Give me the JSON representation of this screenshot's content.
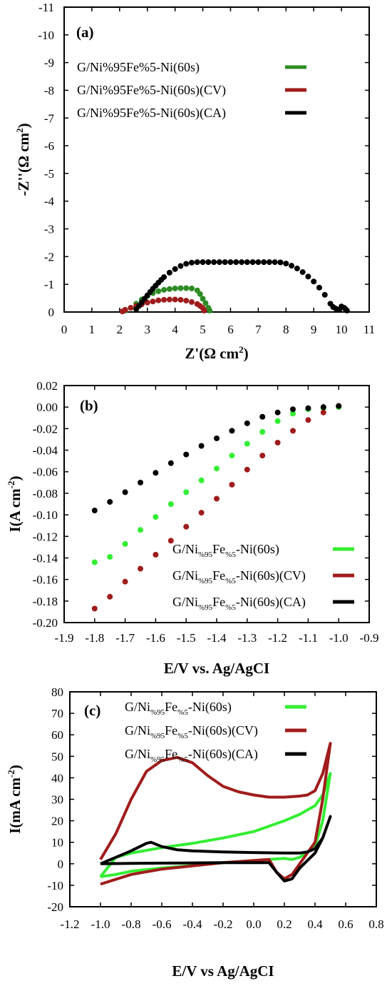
{
  "chart_data": [
    {
      "type": "scatter",
      "panel_label": "(a)",
      "xlabel": "Z'(Ω cm²)",
      "ylabel": "-Z''(Ω cm²)",
      "xlim": [
        0,
        11
      ],
      "ylim": [
        0,
        -11
      ],
      "xticks": [
        0,
        1,
        2,
        3,
        4,
        5,
        6,
        7,
        8,
        9,
        10,
        11
      ],
      "yticks": [
        0,
        -1,
        -2,
        -3,
        -4,
        -5,
        -6,
        -7,
        -8,
        -9,
        -10,
        -11
      ],
      "legend_position": "top-left",
      "series": [
        {
          "name": "G/Ni%95Fe%5-Ni(60s)",
          "legend_parts": [
            "G/Ni%95Fe%5-Ni(60s)"
          ],
          "color": "#2e8b24",
          "x": [
            2.2,
            2.4,
            2.6,
            2.8,
            3.0,
            3.2,
            3.4,
            3.6,
            3.8,
            4.0,
            4.2,
            4.4,
            4.6,
            4.8,
            4.9,
            5.0,
            5.1,
            5.2,
            5.25
          ],
          "y": [
            -0.05,
            -0.15,
            -0.3,
            -0.45,
            -0.58,
            -0.68,
            -0.75,
            -0.8,
            -0.83,
            -0.85,
            -0.86,
            -0.86,
            -0.85,
            -0.78,
            -0.65,
            -0.48,
            -0.32,
            -0.15,
            -0.05
          ]
        },
        {
          "name": "G/Ni%95Fe%5-Ni(60s)(CV)",
          "legend_parts": [
            "G/Ni%95Fe%5-Ni(60s)(CV)"
          ],
          "color": "#a01c1c",
          "x": [
            2.1,
            2.2,
            2.4,
            2.6,
            2.8,
            3.0,
            3.2,
            3.4,
            3.6,
            3.8,
            4.0,
            4.2,
            4.4,
            4.6,
            4.8,
            4.9,
            5.0,
            5.05
          ],
          "y": [
            -0.02,
            -0.08,
            -0.15,
            -0.22,
            -0.28,
            -0.34,
            -0.38,
            -0.42,
            -0.44,
            -0.45,
            -0.45,
            -0.44,
            -0.41,
            -0.36,
            -0.29,
            -0.22,
            -0.14,
            -0.05
          ]
        },
        {
          "name": "G/Ni%95Fe%5-Ni(60s)(CA)",
          "legend_parts": [
            "G/Ni%95Fe%5-Ni(60s)(CA)"
          ],
          "color": "#000000",
          "x": [
            2.6,
            2.7,
            2.8,
            2.9,
            3.0,
            3.1,
            3.2,
            3.3,
            3.4,
            3.5,
            3.6,
            3.8,
            4.0,
            4.2,
            4.4,
            4.6,
            4.8,
            5.0,
            5.2,
            5.4,
            5.6,
            5.8,
            6.0,
            6.2,
            6.4,
            6.6,
            6.8,
            7.0,
            7.2,
            7.4,
            7.6,
            7.8,
            8.0,
            8.2,
            8.4,
            8.6,
            8.8,
            9.0,
            9.2,
            9.4,
            9.6,
            9.7,
            9.8,
            9.9,
            10.0,
            10.1,
            10.15,
            10.2
          ],
          "y": [
            -0.1,
            -0.22,
            -0.35,
            -0.48,
            -0.6,
            -0.72,
            -0.84,
            -0.95,
            -1.06,
            -1.16,
            -1.26,
            -1.42,
            -1.55,
            -1.66,
            -1.74,
            -1.78,
            -1.8,
            -1.8,
            -1.8,
            -1.8,
            -1.8,
            -1.8,
            -1.8,
            -1.8,
            -1.8,
            -1.8,
            -1.8,
            -1.8,
            -1.8,
            -1.8,
            -1.8,
            -1.79,
            -1.75,
            -1.67,
            -1.57,
            -1.44,
            -1.28,
            -1.1,
            -0.88,
            -0.62,
            -0.3,
            -0.18,
            -0.12,
            -0.08,
            -0.2,
            -0.15,
            -0.1,
            -0.05
          ]
        }
      ]
    },
    {
      "type": "scatter",
      "panel_label": "(b)",
      "xlabel": "E/V vs. Ag/AgCI",
      "ylabel": "I(A cm⁻²)",
      "xlim": [
        -1.9,
        -0.9
      ],
      "ylim": [
        -0.2,
        0.02
      ],
      "xticks": [
        -1.9,
        -1.8,
        -1.7,
        -1.6,
        -1.5,
        -1.4,
        -1.3,
        -1.2,
        -1.1,
        -1.0,
        -0.9
      ],
      "xtick_labels": [
        "-1.9",
        "-1.8",
        "-1.7",
        "-1.6",
        "-1.5",
        "-1.4",
        "-1.3",
        "-1.2",
        "-1.1",
        "-1.0",
        "-0.9"
      ],
      "yticks": [
        0.02,
        0.0,
        -0.02,
        -0.04,
        -0.06,
        -0.08,
        -0.1,
        -0.12,
        -0.14,
        -0.16,
        -0.18,
        -0.2
      ],
      "ytick_labels": [
        "0.02",
        "0.00",
        "-0.02",
        "-0.04",
        "-0.06",
        "-0.08",
        "-0.10",
        "-0.12",
        "-0.14",
        "-0.16",
        "-0.18",
        "-0.20"
      ],
      "legend_position": "bottom-right",
      "series": [
        {
          "name": "G/Ni%95Fe%5-Ni(60s)",
          "legend_parts": [
            "G/Ni",
            "%95",
            "Fe",
            "%5",
            "-Ni(60s)"
          ],
          "color": "#33ee33",
          "x": [
            -1.8,
            -1.75,
            -1.7,
            -1.65,
            -1.6,
            -1.55,
            -1.5,
            -1.45,
            -1.4,
            -1.35,
            -1.3,
            -1.25,
            -1.2,
            -1.15,
            -1.1,
            -1.05,
            -1.0
          ],
          "y": [
            -0.144,
            -0.139,
            -0.127,
            -0.114,
            -0.102,
            -0.09,
            -0.079,
            -0.068,
            -0.057,
            -0.045,
            -0.034,
            -0.023,
            -0.013,
            -0.006,
            -0.002,
            -0.001,
            0.0
          ]
        },
        {
          "name": "G/Ni%95Fe%5-Ni(60s)(CV)",
          "legend_parts": [
            "G/Ni",
            "%95",
            "Fe",
            "%5",
            "-Ni(60s)(CV)"
          ],
          "color": "#a01c1c",
          "x": [
            -1.8,
            -1.75,
            -1.7,
            -1.65,
            -1.6,
            -1.55,
            -1.5,
            -1.45,
            -1.4,
            -1.35,
            -1.3,
            -1.25,
            -1.2,
            -1.15,
            -1.1,
            -1.05,
            -1.0
          ],
          "y": [
            -0.187,
            -0.176,
            -0.162,
            -0.15,
            -0.137,
            -0.124,
            -0.111,
            -0.098,
            -0.085,
            -0.072,
            -0.058,
            -0.045,
            -0.033,
            -0.022,
            -0.012,
            -0.005,
            0.001
          ]
        },
        {
          "name": "G/Ni%95Fe%5-Ni(60s)(CA)",
          "legend_parts": [
            "G/Ni",
            "%95",
            "Fe",
            "%5",
            "-Ni(60s)(CA)"
          ],
          "color": "#000000",
          "x": [
            -1.8,
            -1.75,
            -1.7,
            -1.65,
            -1.6,
            -1.55,
            -1.5,
            -1.45,
            -1.4,
            -1.35,
            -1.3,
            -1.25,
            -1.2,
            -1.15,
            -1.1,
            -1.05,
            -1.0
          ],
          "y": [
            -0.096,
            -0.088,
            -0.079,
            -0.07,
            -0.061,
            -0.052,
            -0.044,
            -0.036,
            -0.029,
            -0.022,
            -0.015,
            -0.009,
            -0.005,
            -0.002,
            -0.001,
            0.0,
            0.001
          ]
        }
      ]
    },
    {
      "type": "line",
      "panel_label": "(c)",
      "xlabel": "E/V vs Ag/AgCI",
      "ylabel": "I(mA cm⁻²)",
      "xlim": [
        -1.2,
        0.8
      ],
      "ylim": [
        -20,
        80
      ],
      "xticks": [
        -1.2,
        -1.0,
        -0.8,
        -0.6,
        -0.4,
        -0.2,
        0.0,
        0.2,
        0.4,
        0.6,
        0.8
      ],
      "xtick_labels": [
        "-1.2",
        "-1.0",
        "-0.8",
        "-0.6",
        "-0.4",
        "-0.2",
        "0.0",
        "0.2",
        "0.4",
        "0.6",
        "0.8"
      ],
      "yticks": [
        -20,
        -10,
        0,
        10,
        20,
        30,
        40,
        50,
        60,
        70,
        80
      ],
      "legend_position": "top-left",
      "series": [
        {
          "name": "G/Ni%95Fe%5-Ni(60s)",
          "legend_parts": [
            "G/Ni",
            "%95",
            "Fe",
            "%5",
            "-Ni(60s)"
          ],
          "color": "#33ee33",
          "x": [
            -1.0,
            -0.9,
            -0.8,
            -0.6,
            -0.4,
            -0.2,
            0.0,
            0.2,
            0.3,
            0.35,
            0.4,
            0.45,
            0.5,
            0.45,
            0.4,
            0.3,
            0.25,
            0.2,
            0.1,
            0.0,
            -0.2,
            -0.4,
            -0.6,
            -0.8,
            -0.9,
            -1.0,
            -1.0
          ],
          "x_note": "",
          "y": [
            -6,
            3,
            5,
            7.5,
            9.5,
            12,
            15,
            20,
            23,
            25,
            27,
            32,
            42,
            20,
            8,
            3,
            2,
            2.5,
            2,
            1.5,
            0.5,
            -0.8,
            -2,
            -3.5,
            -5,
            -6,
            -6
          ]
        },
        {
          "name": "G/Ni%95Fe%5-Ni(60s)(CV)",
          "legend_parts": [
            "G/Ni",
            "%95",
            "Fe",
            "%5",
            "-Ni(60s)(CV)"
          ],
          "color": "#a01c1c",
          "x": [
            -1.0,
            -0.9,
            -0.8,
            -0.7,
            -0.6,
            -0.5,
            -0.4,
            -0.3,
            -0.2,
            -0.1,
            0.0,
            0.1,
            0.2,
            0.3,
            0.35,
            0.4,
            0.45,
            0.5,
            0.45,
            0.4,
            0.3,
            0.25,
            0.2,
            0.15,
            0.1,
            0.0,
            -0.2,
            -0.4,
            -0.6,
            -0.8,
            -1.0
          ],
          "y": [
            2,
            14,
            30,
            43,
            48,
            49.5,
            47,
            41,
            36,
            33.5,
            32,
            31,
            31,
            31.5,
            32,
            34,
            42,
            56,
            30,
            10,
            0,
            -5,
            -7,
            -4,
            2,
            1.5,
            0.5,
            -1,
            -2.5,
            -5,
            -9.5
          ]
        },
        {
          "name": "G/Ni%95Fe%5-Ni(60s)(CA)",
          "legend_parts": [
            "G/Ni",
            "%95",
            "Fe",
            "%5",
            "-Ni(60s)(CA)"
          ],
          "color": "#000000",
          "x": [
            -1.0,
            -0.9,
            -0.8,
            -0.7,
            -0.67,
            -0.6,
            -0.5,
            -0.4,
            -0.2,
            0.0,
            0.2,
            0.3,
            0.35,
            0.4,
            0.45,
            0.5,
            0.45,
            0.4,
            0.3,
            0.25,
            0.2,
            0.15,
            0.1,
            0.0,
            -0.2,
            -0.4,
            -0.6,
            -0.8,
            -1.0
          ],
          "y": [
            0,
            3,
            6,
            9.5,
            10,
            8,
            6.5,
            6,
            5.5,
            5.2,
            5,
            5,
            5.5,
            7,
            12,
            22,
            12,
            5,
            -2,
            -7,
            -8,
            -4,
            0.5,
            0.5,
            0.5,
            0.4,
            0.3,
            0.2,
            0
          ]
        }
      ]
    }
  ]
}
